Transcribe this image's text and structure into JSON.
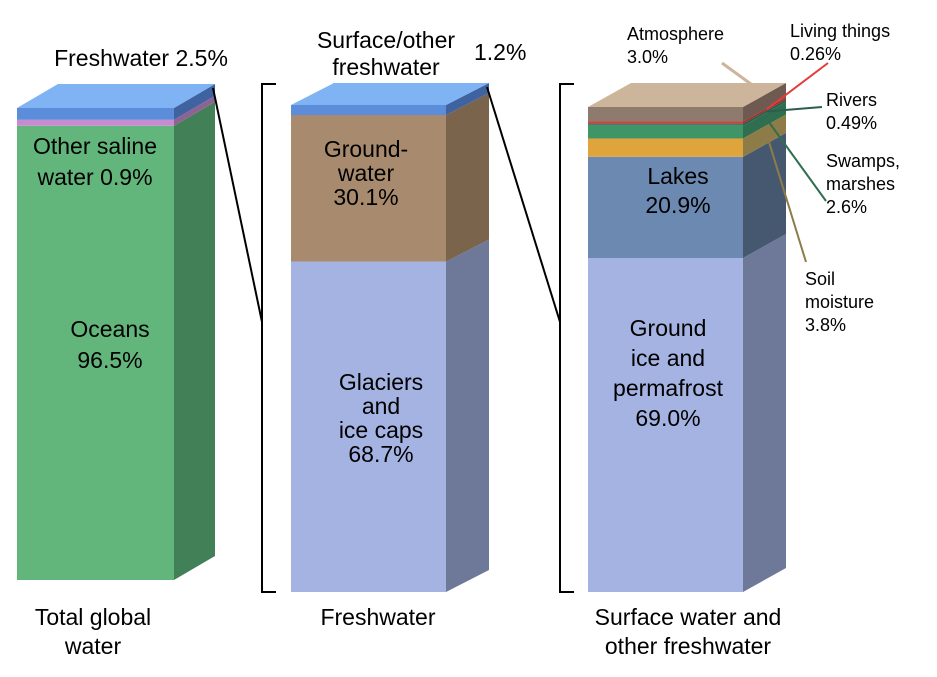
{
  "chart_data": {
    "type": "bar",
    "stacked": true,
    "style": "3d-stacked-columns",
    "columns": [
      {
        "id": "total",
        "label_lines": [
          "Total global",
          "water"
        ],
        "segments": [
          {
            "name": "Oceans",
            "value": 96.5,
            "label_lines": [
              "Oceans",
              "96.5%"
            ],
            "color": "#63b67b",
            "side": "#428157"
          },
          {
            "name": "Other saline water",
            "value": 0.9,
            "label_lines": [
              "Other saline",
              "water 0.9%"
            ],
            "color": "#c78ccf",
            "side": "#8d6394"
          },
          {
            "name": "Freshwater",
            "value": 2.5,
            "label_lines": [
              "Freshwater 2.5%"
            ],
            "color": "#5c8ddb",
            "side": "#3f62a0"
          }
        ],
        "top_color": "#7fb3f3"
      },
      {
        "id": "freshwater",
        "label_lines": [
          "Freshwater"
        ],
        "segments": [
          {
            "name": "Glaciers and ice caps",
            "value": 68.7,
            "label_lines": [
              "Glaciers",
              "and",
              "ice caps",
              "68.7%"
            ],
            "color": "#a4b3e2",
            "side": "#6e799a"
          },
          {
            "name": "Groundwater",
            "value": 30.1,
            "label_lines": [
              "Ground-",
              "water",
              "30.1%"
            ],
            "color": "#a88b6e",
            "side": "#7b644c"
          },
          {
            "name": "Surface/other freshwater",
            "value": 1.2,
            "label_lines": [
              "Surface/other",
              "freshwater"
            ],
            "value_label": "1.2%",
            "color": "#5c8ddb",
            "side": "#3f62a0"
          }
        ],
        "top_color": "#7fb3f3"
      },
      {
        "id": "surface",
        "label_lines": [
          "Surface water and",
          "other freshwater"
        ],
        "segments": [
          {
            "name": "Ground ice and permafrost",
            "value": 69.0,
            "label_lines": [
              "Ground",
              "ice and",
              "permafrost",
              "69.0%"
            ],
            "color": "#a4b3e2",
            "side": "#6e799a"
          },
          {
            "name": "Lakes",
            "value": 20.9,
            "label_lines": [
              "Lakes",
              "20.9%"
            ],
            "color": "#6c89b1",
            "side": "#46586f"
          },
          {
            "name": "Soil moisture",
            "value": 3.8,
            "label_lines": [
              "Soil",
              "moisture",
              "3.8%"
            ],
            "color": "#e0a43d",
            "side": "#8d7c48"
          },
          {
            "name": "Swamps, marshes",
            "value": 2.6,
            "label_lines": [
              "Swamps,",
              "marshes",
              "2.6%"
            ],
            "color": "#3f9565",
            "side": "#2f6e4f"
          },
          {
            "name": "Rivers",
            "value": 0.49,
            "label_lines": [
              "Rivers",
              "0.49%"
            ],
            "color": "#3d8067",
            "side": "#2c5e4d"
          },
          {
            "name": "Living things",
            "value": 0.26,
            "label_lines": [
              "Living things",
              "0.26%"
            ],
            "color": "#e33b3b",
            "side": "#a82b2b"
          },
          {
            "name": "Atmosphere",
            "value": 3.0,
            "label_lines": [
              "Atmosphere",
              "3.0%"
            ],
            "color": "#8f7a6e",
            "side": "#6e5a50"
          }
        ],
        "top_color": "#cdb59b"
      }
    ]
  }
}
